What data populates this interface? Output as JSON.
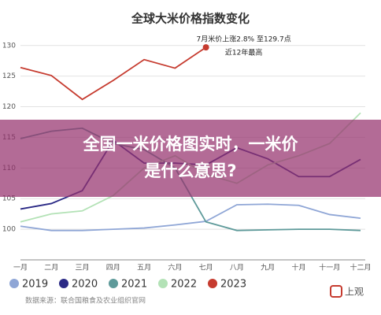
{
  "chart_data": {
    "type": "line",
    "title": "全球大米价格指数变化",
    "categories": [
      "一月",
      "二月",
      "三月",
      "四月",
      "五月",
      "六月",
      "七月",
      "八月",
      "九月",
      "十月",
      "十一月",
      "十二月"
    ],
    "series": [
      {
        "name": "2019",
        "color": "#8fa6d6",
        "values": [
          100.5,
          99.8,
          99.8,
          100,
          100.2,
          100.7,
          101.3,
          104,
          104.1,
          103.9,
          102.4,
          101.8
        ]
      },
      {
        "name": "2020",
        "color": "#2b2a86",
        "values": [
          103.3,
          104.2,
          106.3,
          114.5,
          110.8,
          110.8,
          110.5,
          113.3,
          111.5,
          108.6,
          108.6,
          111.4
        ]
      },
      {
        "name": "2021",
        "color": "#5e9a9a",
        "values": [
          114.8,
          116,
          116.5,
          114,
          113,
          110,
          101.2,
          99.8,
          99.9,
          100,
          100,
          99.8
        ]
      },
      {
        "name": "2022",
        "color": "#b3e2b6",
        "values": [
          101.2,
          102.5,
          103,
          105.5,
          110,
          112,
          109,
          107.5,
          110.5,
          112,
          114,
          119
        ]
      },
      {
        "name": "2023",
        "color": "#c63b2f",
        "values": [
          126.4,
          125.1,
          121.2,
          124.3,
          127.7,
          126.3,
          129.7,
          null,
          null,
          null,
          null,
          null
        ]
      }
    ],
    "ylim": [
      95,
      131
    ],
    "yticks": [
      100,
      105,
      110,
      115,
      120,
      125,
      130
    ],
    "grid": true,
    "annotation": [
      "7月米价上涨2.8% 至129.7点",
      "近12年最高"
    ]
  },
  "overlay": [
    "全国一米价格图实时，一米价",
    "是什么意思?"
  ],
  "source": "数据来源：联合国粮食及农业组织官网",
  "logo": "上观"
}
